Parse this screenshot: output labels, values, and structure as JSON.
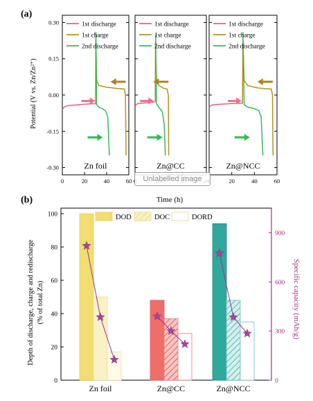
{
  "panel_a": {
    "label": "(a)",
    "ylabel": "Potential (V vs. Zn/Zn²⁺)",
    "xlabel": "Time (h)",
    "legend": [
      "1st discharge",
      "1st charge",
      "2nd discharge"
    ],
    "watermark": "Unlabelled image"
  },
  "panel_b": {
    "label": "(b)",
    "ylabel_left_line1": "Depth of discharge, charge and redischarge",
    "ylabel_left_line2": "(% of total Zn)",
    "ylabel_right": "Specific capacity (mAh/g)",
    "legend": [
      "DOD",
      "DOC",
      "DORD"
    ]
  },
  "chart_data": [
    {
      "type": "line",
      "panel": "(a)",
      "subplots": [
        {
          "name": "Zn foil",
          "xlim": [
            0,
            60
          ],
          "ylim": [
            -0.33,
            0.33
          ],
          "xticks": [
            0,
            20,
            40,
            60
          ],
          "series": [
            {
              "name": "1st discharge",
              "color": "#e8607a",
              "points": [
                [
                  0,
                  -0.06
                ],
                [
                  2,
                  -0.048
                ],
                [
                  5,
                  -0.044
                ],
                [
                  10,
                  -0.042
                ],
                [
                  20,
                  -0.038
                ],
                [
                  28,
                  -0.036
                ],
                [
                  31,
                  -0.036
                ]
              ]
            },
            {
              "name": "1st charge",
              "color": "#b8901c",
              "points": [
                [
                  30,
                  -0.036
                ],
                [
                  30.2,
                  0.23
                ],
                [
                  31,
                  0.06
                ],
                [
                  33,
                  0.04
                ],
                [
                  40,
                  0.032
                ],
                [
                  50,
                  0.027
                ],
                [
                  56,
                  0.025
                ],
                [
                  57,
                  0.0
                ],
                [
                  57.5,
                  -0.25
                ]
              ]
            },
            {
              "name": "2nd discharge",
              "color": "#3ab55a",
              "points": [
                [
                  30.3,
                  0.26
                ],
                [
                  31,
                  -0.04
                ],
                [
                  33,
                  -0.05
                ],
                [
                  36,
                  -0.056
                ],
                [
                  39,
                  -0.065
                ],
                [
                  41,
                  -0.09
                ],
                [
                  42,
                  -0.2
                ],
                [
                  42.5,
                  -0.25
                ]
              ]
            }
          ]
        },
        {
          "name": "Zn@CC",
          "xlim": [
            0,
            60
          ],
          "ylim": [
            -0.33,
            0.33
          ],
          "xticks": [
            0,
            20,
            40,
            60
          ],
          "series": [
            {
              "name": "1st discharge",
              "color": "#e8607a",
              "points": [
                [
                  0,
                  -0.045
                ],
                [
                  2,
                  -0.036
                ],
                [
                  5,
                  -0.034
                ],
                [
                  10,
                  -0.032
                ],
                [
                  14,
                  -0.03
                ],
                [
                  17,
                  -0.028
                ]
              ]
            },
            {
              "name": "1st charge",
              "color": "#b8901c",
              "points": [
                [
                  17,
                  -0.028
                ],
                [
                  17.2,
                  0.22
                ],
                [
                  18,
                  0.06
                ],
                [
                  20,
                  0.04
                ],
                [
                  24,
                  0.028
                ],
                [
                  27,
                  0.025
                ],
                [
                  28,
                  0.0
                ],
                [
                  28.3,
                  -0.25
                ]
              ]
            },
            {
              "name": "2nd discharge",
              "color": "#3ab55a",
              "points": [
                [
                  17.3,
                  0.25
                ],
                [
                  18,
                  -0.035
                ],
                [
                  20,
                  -0.05
                ],
                [
                  23,
                  -0.07
                ],
                [
                  24.5,
                  -0.12
                ],
                [
                  25.5,
                  -0.25
                ]
              ]
            }
          ]
        },
        {
          "name": "Zn@NCC",
          "xlim": [
            0,
            60
          ],
          "ylim": [
            -0.33,
            0.33
          ],
          "xticks": [
            0,
            20,
            40,
            60
          ],
          "series": [
            {
              "name": "1st discharge",
              "color": "#e8607a",
              "points": [
                [
                  0,
                  -0.05
                ],
                [
                  2,
                  -0.042
                ],
                [
                  5,
                  -0.04
                ],
                [
                  10,
                  -0.038
                ],
                [
                  20,
                  -0.035
                ],
                [
                  28,
                  -0.034
                ],
                [
                  30,
                  -0.034
                ]
              ]
            },
            {
              "name": "1st charge",
              "color": "#b8901c",
              "points": [
                [
                  29.5,
                  -0.034
                ],
                [
                  29.8,
                  0.23
                ],
                [
                  31,
                  0.06
                ],
                [
                  34,
                  0.04
                ],
                [
                  42,
                  0.03
                ],
                [
                  50,
                  0.026
                ],
                [
                  55,
                  0.025
                ],
                [
                  56,
                  0.0
                ],
                [
                  56.5,
                  -0.25
                ]
              ]
            },
            {
              "name": "2nd discharge",
              "color": "#3ab55a",
              "points": [
                [
                  29.9,
                  0.26
                ],
                [
                  31,
                  -0.04
                ],
                [
                  34,
                  -0.05
                ],
                [
                  40,
                  -0.056
                ],
                [
                  44,
                  -0.065
                ],
                [
                  46,
                  -0.09
                ],
                [
                  47,
                  -0.2
                ],
                [
                  47.5,
                  -0.25
                ]
              ]
            }
          ]
        }
      ],
      "ylabel": "Potential (V vs. Zn/Zn²⁺)",
      "xlabel": "Time (h)",
      "yticks": [
        -0.3,
        -0.15,
        0.0,
        0.15,
        0.3
      ],
      "legend_position": "top-right of each subplot",
      "annotations": [
        "arrows indicating direction of each curve"
      ]
    },
    {
      "type": "bar",
      "panel": "(b)",
      "categories": [
        "Zn foil",
        "Zn@CC",
        "Zn@NCC"
      ],
      "series": [
        {
          "name": "DOD",
          "values": [
            100,
            48,
            94
          ]
        },
        {
          "name": "DOC",
          "values": [
            50,
            37,
            48
          ]
        },
        {
          "name": "DORD",
          "values": [
            17,
            28,
            35
          ]
        }
      ],
      "bar_colors": {
        "Zn foil": [
          "#f2dd72",
          "#faf1c4",
          "#fffbe6"
        ],
        "Zn@CC": [
          "#ee6f6a",
          "#f4aaa5",
          "#ffffff"
        ],
        "Zn@NCC": [
          "#2fa89e",
          "#a9d9d4",
          "#ffffff"
        ]
      },
      "secondary_series": {
        "name": "Specific capacity",
        "axis": "right",
        "color": "#a0308a",
        "marker": "star",
        "values": [
          [
            820,
            385,
            125
          ],
          [
            390,
            300,
            220
          ],
          [
            775,
            385,
            285
          ]
        ]
      },
      "ylim_left": [
        0,
        100
      ],
      "yticks_left": [
        0,
        20,
        40,
        60,
        80,
        100
      ],
      "ylim_right": [
        0,
        1050
      ],
      "yticks_right": [
        0,
        300,
        600,
        900
      ],
      "legend_position": "top-left"
    }
  ]
}
